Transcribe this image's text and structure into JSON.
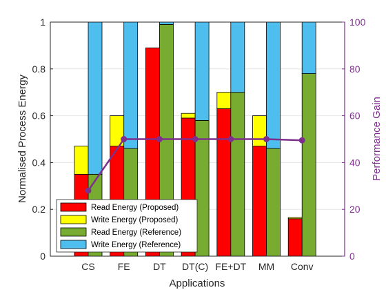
{
  "chart_data": {
    "type": "bar",
    "stacked": true,
    "grouped": true,
    "categories": [
      "CS",
      "FE",
      "DT",
      "DT(C)",
      "FE+DT",
      "MM",
      "Conv"
    ],
    "xlabel": "Applications",
    "ylabel": "Normalised Process Energy",
    "y2label": "Performance Gain",
    "ylim": [
      0,
      1
    ],
    "y2lim": [
      0,
      100
    ],
    "yticks": [
      "0",
      "0.2",
      "0.4",
      "0.6",
      "0.8",
      "1"
    ],
    "y2ticks": [
      "0",
      "20",
      "40",
      "60",
      "80",
      "100"
    ],
    "grid": true,
    "legend_position": "bottom-left",
    "series": [
      {
        "name": "Read Energy (Proposed)",
        "group": "Proposed",
        "color": "#ff0000",
        "values": [
          0.35,
          0.47,
          0.89,
          0.59,
          0.63,
          0.47,
          0.16
        ]
      },
      {
        "name": "Write Energy (Proposed)",
        "group": "Proposed",
        "color": "#ffff00",
        "values": [
          0.12,
          0.13,
          0.0,
          0.02,
          0.07,
          0.13,
          0.005
        ]
      },
      {
        "name": "Read Energy (Reference)",
        "group": "Reference",
        "color": "#77ac30",
        "values": [
          0.35,
          0.46,
          0.99,
          0.58,
          0.7,
          0.46,
          0.78
        ]
      },
      {
        "name": "Write Energy (Reference)",
        "group": "Reference",
        "color": "#4dbeee",
        "values": [
          0.65,
          0.54,
          0.01,
          0.42,
          0.3,
          0.54,
          0.22
        ]
      }
    ],
    "line_series": {
      "name": "",
      "axis": "right",
      "color": "#7e2f8e",
      "values": [
        28,
        50,
        50,
        50,
        50,
        50,
        49.5
      ]
    }
  }
}
